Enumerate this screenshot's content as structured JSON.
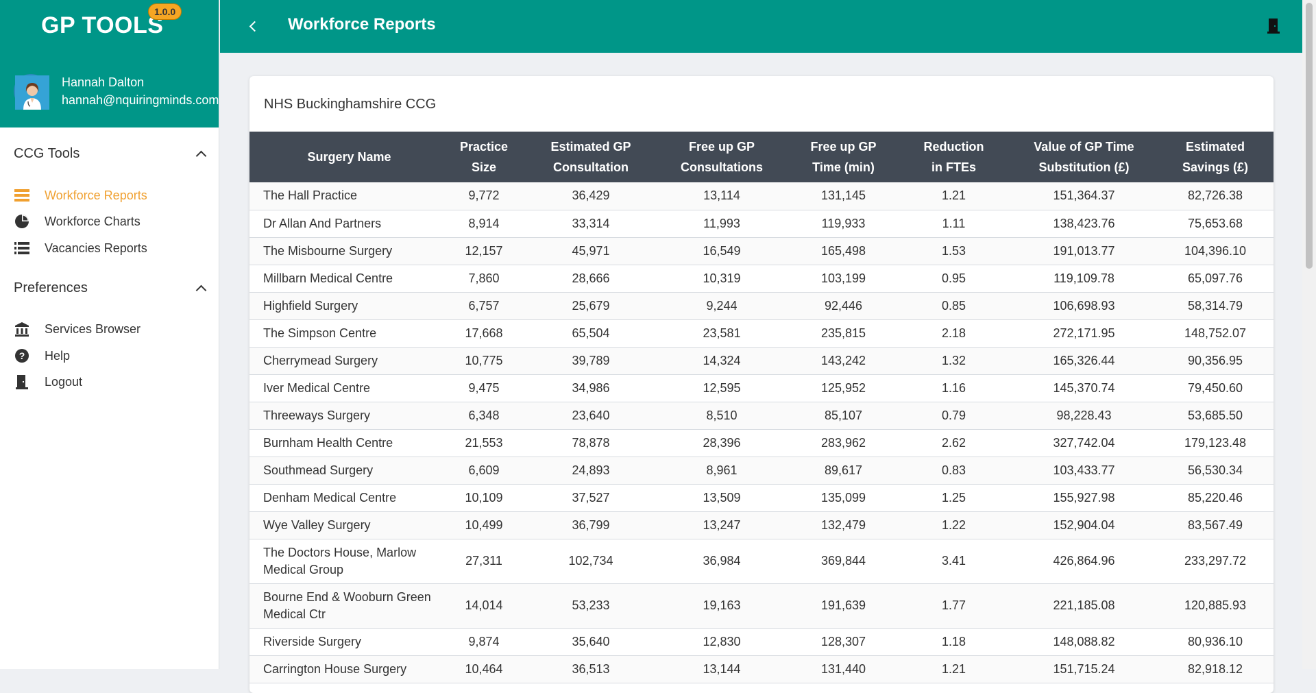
{
  "app": {
    "brand": "GP TOOLS",
    "version": "1.0.0"
  },
  "user": {
    "name": "Hannah Dalton",
    "email": "hannah@nquiringminds.com"
  },
  "sidebar": {
    "sections": [
      {
        "title": "CCG Tools",
        "items": [
          {
            "label": "Workforce Reports",
            "icon": "list-icon",
            "active": true
          },
          {
            "label": "Workforce Charts",
            "icon": "pie-chart-icon"
          },
          {
            "label": "Vacancies Reports",
            "icon": "list-icon"
          }
        ]
      },
      {
        "title": "Preferences",
        "items": [
          {
            "label": "Services Browser",
            "icon": "bank-icon"
          },
          {
            "label": "Help",
            "icon": "help-icon"
          },
          {
            "label": "Logout",
            "icon": "door-icon"
          }
        ]
      }
    ]
  },
  "header": {
    "title": "Workforce Reports"
  },
  "card": {
    "title": "NHS Buckinghamshire CCG"
  },
  "table": {
    "columns": [
      "Surgery Name",
      "Practice Size",
      "Estimated GP Consultation",
      "Free up GP Consultations",
      "Free up GP Time (min)",
      "Reduction in FTEs",
      "Value of GP Time Substitution (£)",
      "Estimated Savings (£)"
    ],
    "rows": [
      [
        "The Hall Practice",
        "9,772",
        "36,429",
        "13,114",
        "131,145",
        "1.21",
        "151,364.37",
        "82,726.38"
      ],
      [
        "Dr Allan And Partners",
        "8,914",
        "33,314",
        "11,993",
        "119,933",
        "1.11",
        "138,423.76",
        "75,653.68"
      ],
      [
        "The Misbourne Surgery",
        "12,157",
        "45,971",
        "16,549",
        "165,498",
        "1.53",
        "191,013.77",
        "104,396.10"
      ],
      [
        "Millbarn Medical Centre",
        "7,860",
        "28,666",
        "10,319",
        "103,199",
        "0.95",
        "119,109.78",
        "65,097.76"
      ],
      [
        "Highfield Surgery",
        "6,757",
        "25,679",
        "9,244",
        "92,446",
        "0.85",
        "106,698.93",
        "58,314.79"
      ],
      [
        "The Simpson Centre",
        "17,668",
        "65,504",
        "23,581",
        "235,815",
        "2.18",
        "272,171.95",
        "148,752.07"
      ],
      [
        "Cherrymead Surgery",
        "10,775",
        "39,789",
        "14,324",
        "143,242",
        "1.32",
        "165,326.44",
        "90,356.95"
      ],
      [
        "Iver Medical Centre",
        "9,475",
        "34,986",
        "12,595",
        "125,952",
        "1.16",
        "145,370.74",
        "79,450.60"
      ],
      [
        "Threeways Surgery",
        "6,348",
        "23,640",
        "8,510",
        "85,107",
        "0.79",
        "98,228.43",
        "53,685.50"
      ],
      [
        "Burnham Health Centre",
        "21,553",
        "78,878",
        "28,396",
        "283,962",
        "2.62",
        "327,742.04",
        "179,123.48"
      ],
      [
        "Southmead Surgery",
        "6,609",
        "24,893",
        "8,961",
        "89,617",
        "0.83",
        "103,433.77",
        "56,530.34"
      ],
      [
        "Denham Medical Centre",
        "10,109",
        "37,527",
        "13,509",
        "135,099",
        "1.25",
        "155,927.98",
        "85,220.46"
      ],
      [
        "Wye Valley Surgery",
        "10,499",
        "36,799",
        "13,247",
        "132,479",
        "1.22",
        "152,904.04",
        "83,567.49"
      ],
      [
        "The Doctors House, Marlow Medical Group",
        "27,311",
        "102,734",
        "36,984",
        "369,844",
        "3.41",
        "426,864.96",
        "233,297.72"
      ],
      [
        "Bourne End & Wooburn Green Medical Ctr",
        "14,014",
        "53,233",
        "19,163",
        "191,639",
        "1.77",
        "221,185.08",
        "120,885.93"
      ],
      [
        "Riverside Surgery",
        "9,874",
        "35,640",
        "12,830",
        "128,307",
        "1.18",
        "148,088.82",
        "80,936.10"
      ],
      [
        "Carrington House Surgery",
        "10,464",
        "36,513",
        "13,144",
        "131,440",
        "1.21",
        "151,715.24",
        "82,918.12"
      ]
    ]
  }
}
